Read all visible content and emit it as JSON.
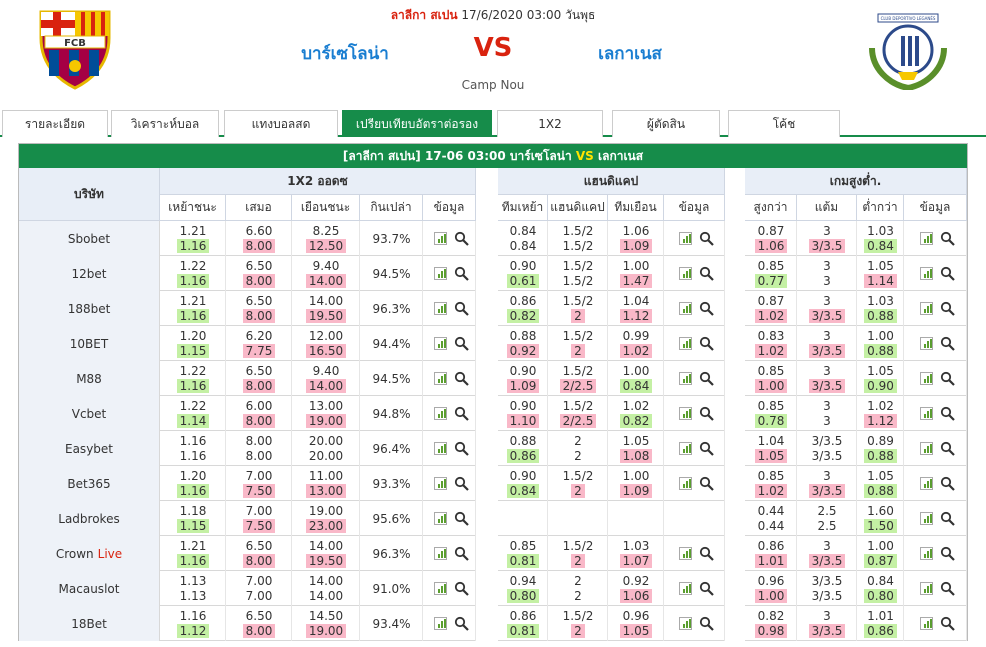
{
  "header": {
    "league": "ลาลีกา สเปน",
    "datetime": "17/6/2020 03:00 วันพุธ",
    "home": "บาร์เซโลน่า",
    "vs": "VS",
    "away": "เลกาเนส",
    "venue": "Camp Nou",
    "home_logo_text": "FCB",
    "away_logo_text": "CLUB DEPORTIVO LEGANÉS"
  },
  "tabs": [
    {
      "label": "รายละเอียด",
      "active": false
    },
    {
      "label": "วิเคราะห์บอล",
      "active": false
    },
    {
      "label": "แทงบอลสด",
      "active": false
    },
    {
      "label": "เปรียบเทียบอัตราต่อรอง",
      "active": true
    },
    {
      "label": "1X2",
      "active": false
    },
    {
      "label": "ผู้ตัดสิน",
      "active": false
    },
    {
      "label": "โค้ช",
      "active": false
    }
  ],
  "title_bar": {
    "league": "[ลาลีกา สเปน]",
    "datetime": "17-06 03:00",
    "home": "บาร์เซโลน่า",
    "vs": "VS",
    "away": "เลกาเนส"
  },
  "columns": {
    "company": "บริษัท",
    "group_1x2": "1X2 ออดซ",
    "group_hdp": "แฮนดิแคป",
    "group_ou": "เกมสูงต่ำ.",
    "x12": [
      "เหย้าชนะ",
      "เสมอ",
      "เยือนชนะ",
      "กินเปล่า",
      "ข้อมูล"
    ],
    "hdp": [
      "ทีมเหย้า",
      "แฮนดิแคป",
      "ทีมเยือน",
      "ข้อมูล"
    ],
    "ou": [
      "สูงกว่า",
      "แต้ม",
      "ต่ำกว่า",
      "ข้อมูล"
    ]
  },
  "colors": {
    "green": "#168c4a",
    "up": "#c4f0a4",
    "down": "#f9b8c8",
    "red": "#d9230f",
    "blue": "#1a7ed1"
  },
  "rows": [
    {
      "name": "Sbobet",
      "live": "",
      "x12": [
        [
          "1.21",
          "1.16",
          "u"
        ],
        [
          "6.60",
          "8.00",
          "d"
        ],
        [
          "8.25",
          "12.50",
          "d"
        ]
      ],
      "pay": "93.7%",
      "hdp": [
        [
          "0.84",
          "0.84",
          ""
        ],
        [
          "1.5/2",
          "1.5/2",
          ""
        ],
        [
          "1.06",
          "1.09",
          "d"
        ]
      ],
      "ou": [
        [
          "0.87",
          "1.06",
          "d"
        ],
        [
          "3",
          "3/3.5",
          "d"
        ],
        [
          "1.03",
          "0.84",
          "u"
        ]
      ]
    },
    {
      "name": "12bet",
      "live": "",
      "x12": [
        [
          "1.22",
          "1.16",
          "u"
        ],
        [
          "6.50",
          "8.00",
          "d"
        ],
        [
          "9.40",
          "14.00",
          "d"
        ]
      ],
      "pay": "94.5%",
      "hdp": [
        [
          "0.90",
          "0.61",
          "u"
        ],
        [
          "1.5/2",
          "1.5/2",
          ""
        ],
        [
          "1.00",
          "1.47",
          "d"
        ]
      ],
      "ou": [
        [
          "0.85",
          "0.77",
          "u"
        ],
        [
          "3",
          "3",
          ""
        ],
        [
          "1.05",
          "1.14",
          "d"
        ]
      ]
    },
    {
      "name": "188bet",
      "live": "",
      "x12": [
        [
          "1.21",
          "1.16",
          "u"
        ],
        [
          "6.50",
          "8.00",
          "d"
        ],
        [
          "14.00",
          "19.50",
          "d"
        ]
      ],
      "pay": "96.3%",
      "hdp": [
        [
          "0.86",
          "0.82",
          "u"
        ],
        [
          "1.5/2",
          "2",
          "d"
        ],
        [
          "1.04",
          "1.12",
          "d"
        ]
      ],
      "ou": [
        [
          "0.87",
          "1.02",
          "d"
        ],
        [
          "3",
          "3/3.5",
          "d"
        ],
        [
          "1.03",
          "0.88",
          "u"
        ]
      ]
    },
    {
      "name": "10BET",
      "live": "",
      "x12": [
        [
          "1.20",
          "1.15",
          "u"
        ],
        [
          "6.20",
          "7.75",
          "d"
        ],
        [
          "12.00",
          "16.50",
          "d"
        ]
      ],
      "pay": "94.4%",
      "hdp": [
        [
          "0.88",
          "0.92",
          "d"
        ],
        [
          "1.5/2",
          "2",
          "d"
        ],
        [
          "0.99",
          "1.02",
          "d"
        ]
      ],
      "ou": [
        [
          "0.83",
          "1.02",
          "d"
        ],
        [
          "3",
          "3/3.5",
          "d"
        ],
        [
          "1.00",
          "0.88",
          "u"
        ]
      ]
    },
    {
      "name": "M88",
      "live": "",
      "x12": [
        [
          "1.22",
          "1.16",
          "u"
        ],
        [
          "6.50",
          "8.00",
          "d"
        ],
        [
          "9.40",
          "14.00",
          "d"
        ]
      ],
      "pay": "94.5%",
      "hdp": [
        [
          "0.90",
          "1.09",
          "d"
        ],
        [
          "1.5/2",
          "2/2.5",
          "d"
        ],
        [
          "1.00",
          "0.84",
          "u"
        ]
      ],
      "ou": [
        [
          "0.85",
          "1.00",
          "d"
        ],
        [
          "3",
          "3/3.5",
          "d"
        ],
        [
          "1.05",
          "0.90",
          "u"
        ]
      ]
    },
    {
      "name": "Vcbet",
      "live": "",
      "x12": [
        [
          "1.22",
          "1.14",
          "u"
        ],
        [
          "6.00",
          "8.00",
          "d"
        ],
        [
          "13.00",
          "19.00",
          "d"
        ]
      ],
      "pay": "94.8%",
      "hdp": [
        [
          "0.90",
          "1.10",
          "d"
        ],
        [
          "1.5/2",
          "2/2.5",
          "d"
        ],
        [
          "1.02",
          "0.82",
          "u"
        ]
      ],
      "ou": [
        [
          "0.85",
          "0.78",
          "u"
        ],
        [
          "3",
          "3",
          ""
        ],
        [
          "1.02",
          "1.12",
          "d"
        ]
      ]
    },
    {
      "name": "Easybet",
      "live": "",
      "x12": [
        [
          "1.16",
          "1.16",
          ""
        ],
        [
          "8.00",
          "8.00",
          ""
        ],
        [
          "20.00",
          "20.00",
          ""
        ]
      ],
      "pay": "96.4%",
      "hdp": [
        [
          "0.88",
          "0.86",
          "u"
        ],
        [
          "2",
          "2",
          ""
        ],
        [
          "1.05",
          "1.08",
          "d"
        ]
      ],
      "ou": [
        [
          "1.04",
          "1.05",
          "d"
        ],
        [
          "3/3.5",
          "3/3.5",
          ""
        ],
        [
          "0.89",
          "0.88",
          "u"
        ]
      ]
    },
    {
      "name": "Bet365",
      "live": "",
      "x12": [
        [
          "1.20",
          "1.16",
          "u"
        ],
        [
          "7.00",
          "7.50",
          "d"
        ],
        [
          "11.00",
          "13.00",
          "d"
        ]
      ],
      "pay": "93.3%",
      "hdp": [
        [
          "0.90",
          "0.84",
          "u"
        ],
        [
          "1.5/2",
          "2",
          "d"
        ],
        [
          "1.00",
          "1.09",
          "d"
        ]
      ],
      "ou": [
        [
          "0.85",
          "1.02",
          "d"
        ],
        [
          "3",
          "3/3.5",
          "d"
        ],
        [
          "1.05",
          "0.88",
          "u"
        ]
      ]
    },
    {
      "name": "Ladbrokes",
      "live": "",
      "x12": [
        [
          "1.18",
          "1.15",
          "u"
        ],
        [
          "7.00",
          "7.50",
          "d"
        ],
        [
          "19.00",
          "23.00",
          "d"
        ]
      ],
      "pay": "95.6%",
      "hdp": null,
      "ou": [
        [
          "0.44",
          "0.44",
          ""
        ],
        [
          "2.5",
          "2.5",
          ""
        ],
        [
          "1.60",
          "1.50",
          "u"
        ]
      ]
    },
    {
      "name": "Crown",
      "live": "Live",
      "x12": [
        [
          "1.21",
          "1.16",
          "u"
        ],
        [
          "6.50",
          "8.00",
          "d"
        ],
        [
          "14.00",
          "19.50",
          "d"
        ]
      ],
      "pay": "96.3%",
      "hdp": [
        [
          "0.85",
          "0.81",
          "u"
        ],
        [
          "1.5/2",
          "2",
          "d"
        ],
        [
          "1.03",
          "1.07",
          "d"
        ]
      ],
      "ou": [
        [
          "0.86",
          "1.01",
          "d"
        ],
        [
          "3",
          "3/3.5",
          "d"
        ],
        [
          "1.00",
          "0.87",
          "u"
        ]
      ]
    },
    {
      "name": "Macauslot",
      "live": "",
      "x12": [
        [
          "1.13",
          "1.13",
          ""
        ],
        [
          "7.00",
          "7.00",
          ""
        ],
        [
          "14.00",
          "14.00",
          ""
        ]
      ],
      "pay": "91.0%",
      "hdp": [
        [
          "0.94",
          "0.80",
          "u"
        ],
        [
          "2",
          "2",
          ""
        ],
        [
          "0.92",
          "1.06",
          "d"
        ]
      ],
      "ou": [
        [
          "0.96",
          "1.00",
          "d"
        ],
        [
          "3/3.5",
          "3/3.5",
          ""
        ],
        [
          "0.84",
          "0.80",
          "u"
        ]
      ]
    },
    {
      "name": "18Bet",
      "live": "",
      "x12": [
        [
          "1.16",
          "1.12",
          "u"
        ],
        [
          "6.50",
          "8.00",
          "d"
        ],
        [
          "14.50",
          "19.00",
          "d"
        ]
      ],
      "pay": "93.4%",
      "hdp": [
        [
          "0.86",
          "0.81",
          "u"
        ],
        [
          "1.5/2",
          "2",
          "d"
        ],
        [
          "0.96",
          "1.05",
          "d"
        ]
      ],
      "ou": [
        [
          "0.82",
          "0.98",
          "d"
        ],
        [
          "3",
          "3/3.5",
          "d"
        ],
        [
          "1.01",
          "0.86",
          "u"
        ]
      ]
    }
  ]
}
